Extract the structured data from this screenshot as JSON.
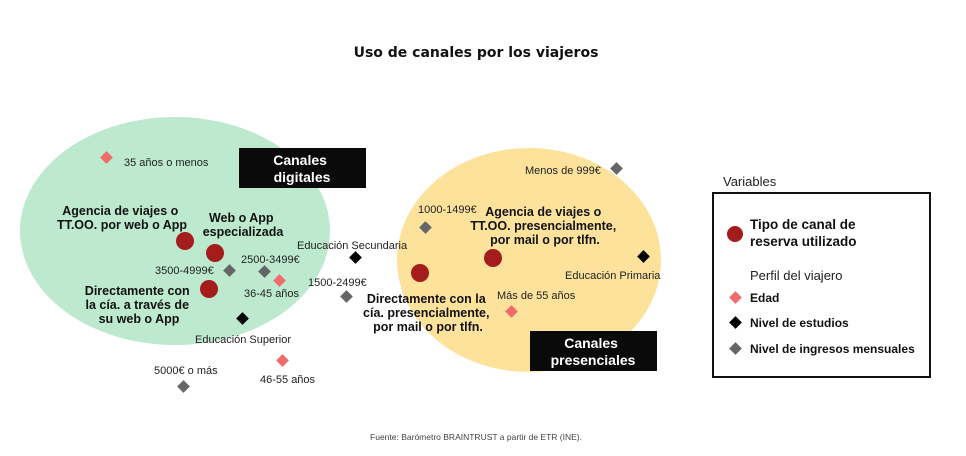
{
  "chart_data": {
    "type": "scatter",
    "title": "Uso de canales por los viajeros",
    "source": "Fuente: Barómetro BRAINTRUST a partir de ETR (INE).",
    "groups": [
      {
        "name_lines": [
          "Canales",
          "digitales"
        ],
        "color": "#bde9cf"
      },
      {
        "name_lines": [
          "Canales",
          "presenciales"
        ],
        "color": "#fde29c"
      }
    ],
    "legend": {
      "heading": "Variables",
      "type_label_lines": [
        "Tipo de canal de",
        "reserva utilizado"
      ],
      "profile_heading": "Perfil del viajero",
      "items": [
        {
          "label": "Edad",
          "color": "#f06b6b"
        },
        {
          "label": "Nivel de estudios",
          "color": "#000000"
        },
        {
          "label": "Nivel de ingresos mensuales",
          "color": "#666666"
        }
      ]
    },
    "colors": {
      "channel": "#a51c1c",
      "edad": "#f06b6b",
      "estudios": "#000000",
      "ingresos": "#666666"
    },
    "points": [
      {
        "kind": "channel",
        "label_lines": [
          "Agencia de viajes o",
          "TT.OO. por web o App"
        ]
      },
      {
        "kind": "channel",
        "label_lines": [
          "Web o App",
          "especializada"
        ]
      },
      {
        "kind": "channel",
        "label_lines": [
          "Directamente con",
          "la cía. a través de",
          "su web o App"
        ]
      },
      {
        "kind": "channel",
        "label_lines": [
          "Agencia de viajes o",
          "TT.OO. presencialmente,",
          "por mail o por tlfn."
        ]
      },
      {
        "kind": "channel",
        "label_lines": [
          "Directamente con la",
          "cía. presencialmente,",
          "por mail o por tlfn."
        ]
      },
      {
        "kind": "edad",
        "label": "35 años o menos"
      },
      {
        "kind": "edad",
        "label": "36-45 años"
      },
      {
        "kind": "edad",
        "label": "46-55 años"
      },
      {
        "kind": "edad",
        "label": "Más de 55 años"
      },
      {
        "kind": "estudios",
        "label": "Educación Secundaria"
      },
      {
        "kind": "estudios",
        "label": "Educación Superior"
      },
      {
        "kind": "estudios",
        "label": "Educación Primaria"
      },
      {
        "kind": "ingresos",
        "label": "3500-4999€"
      },
      {
        "kind": "ingresos",
        "label": "2500-3499€"
      },
      {
        "kind": "ingresos",
        "label": "1500-2499€"
      },
      {
        "kind": "ingresos",
        "label": "5000€ o más"
      },
      {
        "kind": "ingresos",
        "label": "1000-1499€"
      },
      {
        "kind": "ingresos",
        "label": "Menos de 999€"
      }
    ]
  }
}
